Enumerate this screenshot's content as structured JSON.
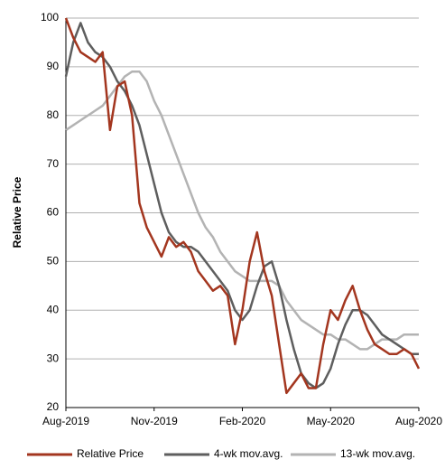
{
  "chart_data": {
    "type": "line",
    "y_label": "Relative Price",
    "x": [
      0,
      0.25,
      0.5,
      0.75,
      1,
      1.25,
      1.5,
      1.75,
      2,
      2.25,
      2.5,
      2.75,
      3,
      3.25,
      3.5,
      3.75,
      4,
      4.25,
      4.5,
      4.75,
      5,
      5.25,
      5.5,
      5.75,
      6,
      6.25,
      6.5,
      6.75,
      7,
      7.25,
      7.5,
      7.75,
      8,
      8.25,
      8.5,
      8.75,
      9,
      9.25,
      9.5,
      9.75,
      10,
      10.25,
      10.5,
      10.75,
      11,
      11.25,
      11.5,
      11.75,
      12
    ],
    "xlim": [
      0,
      12
    ],
    "xticks": [
      {
        "value": 0,
        "label": "Aug-2019"
      },
      {
        "value": 3,
        "label": "Nov-2019"
      },
      {
        "value": 6,
        "label": "Feb-2020"
      },
      {
        "value": 9,
        "label": "May-2020"
      },
      {
        "value": 12,
        "label": "Aug-2020"
      }
    ],
    "ylim": [
      20,
      100
    ],
    "yticks": [
      20,
      30,
      40,
      50,
      60,
      70,
      80,
      90,
      100
    ],
    "grid": true,
    "legend": "bottom",
    "series": [
      {
        "name": "Relative Price",
        "color": "#a3361f",
        "values": [
          100,
          96,
          93,
          92,
          91,
          93,
          77,
          86,
          87,
          80,
          62,
          57,
          54,
          51,
          55,
          53,
          54,
          52,
          48,
          46,
          44,
          45,
          43,
          33,
          40,
          50,
          56,
          48,
          43,
          33,
          23,
          25,
          27,
          24,
          24,
          33,
          40,
          38,
          42,
          45,
          40,
          36,
          33,
          32,
          31,
          31,
          32,
          31,
          28
        ]
      },
      {
        "name": "4-wk mov.avg.",
        "color": "#5e5e5e",
        "values": [
          88,
          95,
          99,
          95,
          93,
          92,
          90,
          87,
          85,
          82,
          78,
          72,
          66,
          60,
          56,
          54,
          53,
          53,
          52,
          50,
          48,
          46,
          44,
          40,
          38,
          40,
          45,
          49,
          50,
          45,
          38,
          32,
          27,
          25,
          24,
          25,
          28,
          33,
          37,
          40,
          40,
          39,
          37,
          35,
          34,
          33,
          32,
          31,
          31
        ]
      },
      {
        "name": "13-wk mov.avg.",
        "color": "#b3b3b3",
        "values": [
          77,
          78,
          79,
          80,
          81,
          82,
          84,
          86,
          88,
          89,
          89,
          87,
          83,
          80,
          76,
          72,
          68,
          64,
          60,
          57,
          55,
          52,
          50,
          48,
          47,
          46,
          46,
          46,
          46,
          45,
          42,
          40,
          38,
          37,
          36,
          35,
          35,
          34,
          34,
          33,
          32,
          32,
          33,
          34,
          34,
          34,
          35,
          35,
          35
        ]
      }
    ]
  }
}
